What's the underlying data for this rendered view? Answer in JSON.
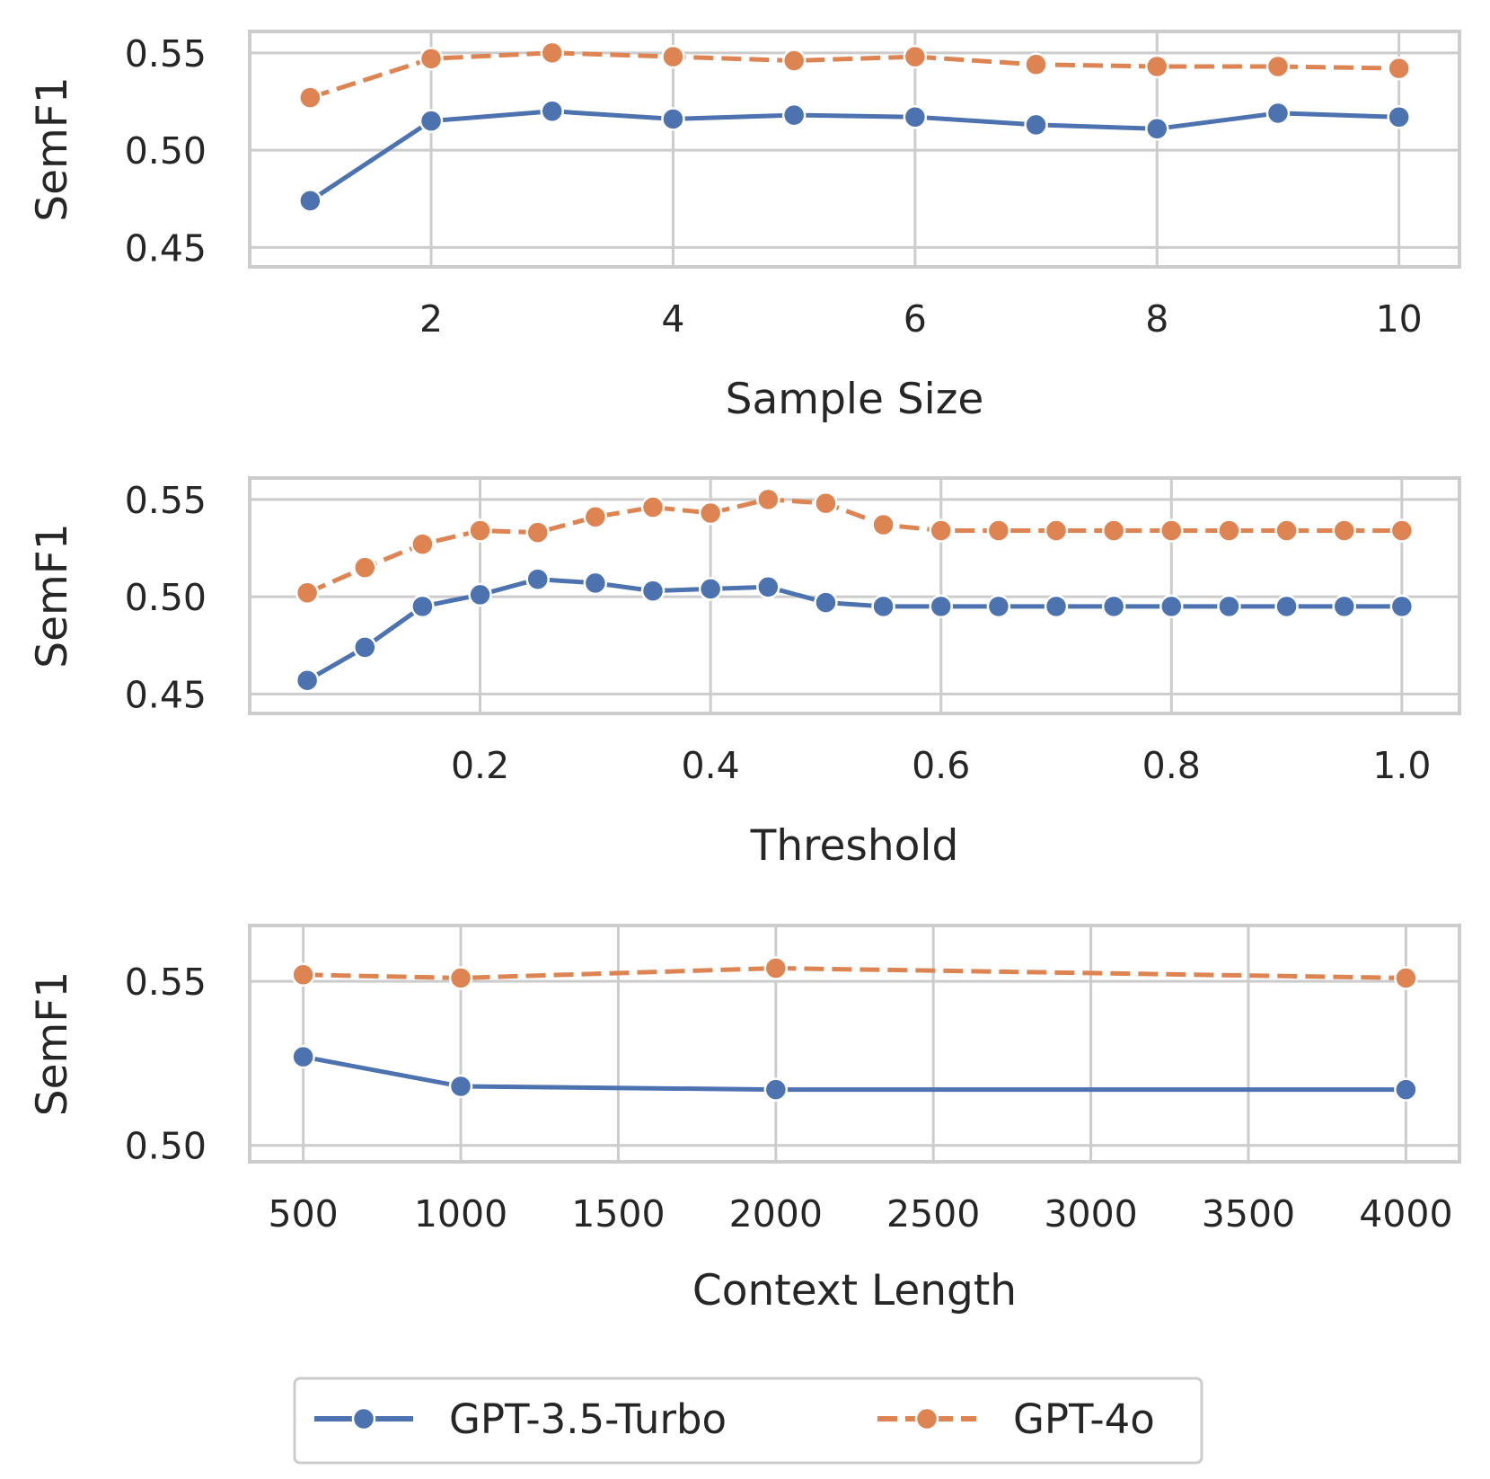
{
  "chart_data": [
    {
      "type": "line",
      "xlabel": "Sample Size",
      "ylabel": "SemF1",
      "xlim": [
        0.5,
        10.5
      ],
      "ylim": [
        0.44,
        0.561
      ],
      "xticks": [
        2,
        4,
        6,
        8,
        10
      ],
      "xtick_labels": [
        "2",
        "4",
        "6",
        "8",
        "10"
      ],
      "yticks": [
        0.45,
        0.5,
        0.55
      ],
      "ytick_labels": [
        "0.45",
        "0.50",
        "0.55"
      ],
      "x": [
        1,
        2,
        3,
        4,
        5,
        6,
        7,
        8,
        9,
        10
      ],
      "series": [
        {
          "name": "GPT-3.5-Turbo",
          "values": [
            0.474,
            0.515,
            0.52,
            0.516,
            0.518,
            0.517,
            0.513,
            0.511,
            0.519,
            0.517
          ]
        },
        {
          "name": "GPT-4o",
          "values": [
            0.527,
            0.547,
            0.55,
            0.548,
            0.546,
            0.548,
            0.544,
            0.543,
            0.543,
            0.542
          ]
        }
      ]
    },
    {
      "type": "line",
      "xlabel": "Threshold",
      "ylabel": "SemF1",
      "xlim": [
        0.0,
        1.05
      ],
      "ylim": [
        0.44,
        0.561
      ],
      "xticks": [
        0.2,
        0.4,
        0.6,
        0.8,
        1.0
      ],
      "xtick_labels": [
        "0.2",
        "0.4",
        "0.6",
        "0.8",
        "1.0"
      ],
      "yticks": [
        0.45,
        0.5,
        0.55
      ],
      "ytick_labels": [
        "0.45",
        "0.50",
        "0.55"
      ],
      "x": [
        0.05,
        0.1,
        0.15,
        0.2,
        0.25,
        0.3,
        0.35,
        0.4,
        0.45,
        0.5,
        0.55,
        0.6,
        0.65,
        0.7,
        0.75,
        0.8,
        0.85,
        0.9,
        0.95,
        1.0
      ],
      "series": [
        {
          "name": "GPT-3.5-Turbo",
          "values": [
            0.457,
            0.474,
            0.495,
            0.501,
            0.509,
            0.507,
            0.503,
            0.504,
            0.505,
            0.497,
            0.495,
            0.495,
            0.495,
            0.495,
            0.495,
            0.495,
            0.495,
            0.495,
            0.495,
            0.495
          ]
        },
        {
          "name": "GPT-4o",
          "values": [
            0.502,
            0.515,
            0.527,
            0.534,
            0.533,
            0.541,
            0.546,
            0.543,
            0.55,
            0.548,
            0.537,
            0.534,
            0.534,
            0.534,
            0.534,
            0.534,
            0.534,
            0.534,
            0.534,
            0.534
          ]
        }
      ]
    },
    {
      "type": "line",
      "xlabel": "Context Length",
      "ylabel": "SemF1",
      "xlim": [
        330,
        4170
      ],
      "ylim": [
        0.495,
        0.567
      ],
      "xticks": [
        500,
        1000,
        1500,
        2000,
        2500,
        3000,
        3500,
        4000
      ],
      "xtick_labels": [
        "500",
        "1000",
        "1500",
        "2000",
        "2500",
        "3000",
        "3500",
        "4000"
      ],
      "yticks": [
        0.5,
        0.55
      ],
      "ytick_labels": [
        "0.50",
        "0.55"
      ],
      "x": [
        500,
        1000,
        2000,
        4000
      ],
      "series": [
        {
          "name": "GPT-3.5-Turbo",
          "values": [
            0.527,
            0.518,
            0.517,
            0.517
          ]
        },
        {
          "name": "GPT-4o",
          "values": [
            0.552,
            0.551,
            0.554,
            0.551
          ]
        }
      ]
    }
  ],
  "legend": {
    "items": [
      {
        "label": "GPT-3.5-Turbo",
        "color": "#4c72b0",
        "dash": "solid"
      },
      {
        "label": "GPT-4o",
        "color": "#dd8452",
        "dash": "dashed"
      }
    ]
  },
  "colors": {
    "series1": "#4c72b0",
    "series2": "#dd8452",
    "grid": "#cccccc",
    "text": "#262626"
  }
}
